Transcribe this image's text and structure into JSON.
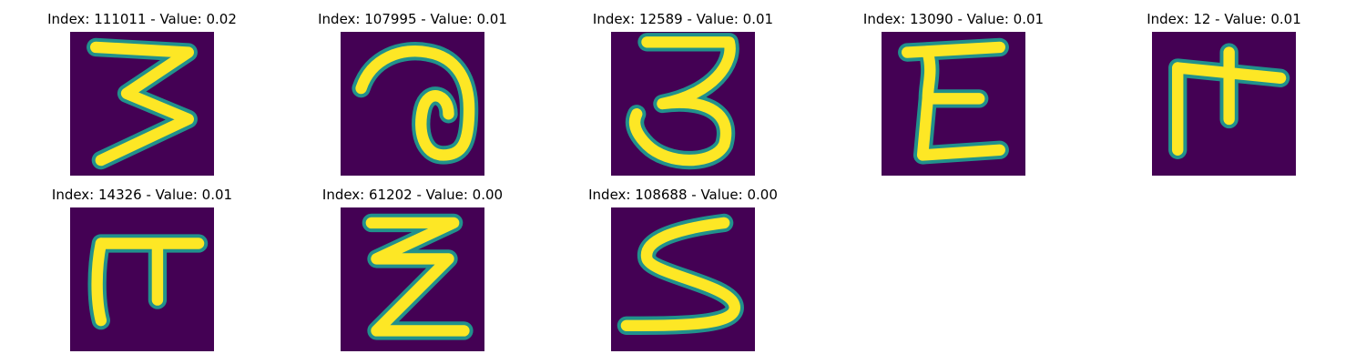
{
  "colors": {
    "background": "#440154",
    "ink": "#fde725",
    "edge": "#21918c"
  },
  "panels": [
    {
      "title": "Index: 111011 - Value: 0.02"
    },
    {
      "title": "Index: 107995 - Value: 0.01"
    },
    {
      "title": "Index: 12589 - Value: 0.01"
    },
    {
      "title": "Index: 13090 - Value: 0.01"
    },
    {
      "title": "Index: 12 - Value: 0.01"
    },
    {
      "title": "Index: 14326 - Value: 0.01"
    },
    {
      "title": "Index: 61202 - Value: 0.00"
    },
    {
      "title": "Index: 108688 - Value: 0.00"
    }
  ]
}
